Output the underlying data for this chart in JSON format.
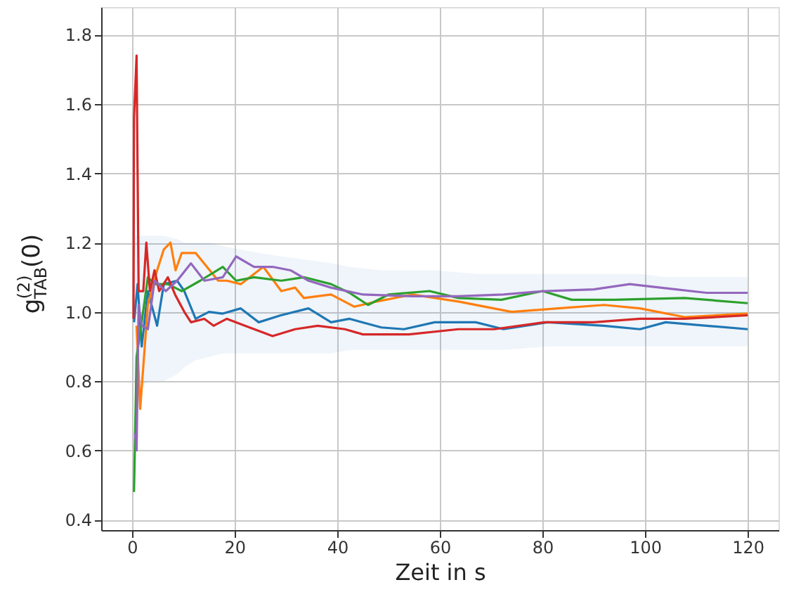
{
  "chart_data": {
    "type": "line",
    "xlabel": "Zeit in s",
    "ylabel": "g$^{(2)}$$_{TAB}$(0)",
    "xlim": [
      -6,
      126
    ],
    "ylim": [
      0.37,
      1.88
    ],
    "xticks": [
      0,
      20,
      40,
      60,
      80,
      100,
      120
    ],
    "yticks": [
      0.4,
      0.6,
      0.8,
      {
        "value": 1.0,
        "label": "1.0"
      },
      1.2,
      1.4,
      1.6,
      1.8
    ],
    "grid": true,
    "line_style": "solid",
    "marker": "none",
    "series": [
      {
        "color": "#1f77b4",
        "x": [
          0.4,
          1.1,
          1.9,
          3.1,
          4.9,
          6.2,
          8.8,
          10.2,
          12.4,
          15,
          17.7,
          21.2,
          24.7,
          29,
          34.4,
          38.8,
          42.4,
          48.6,
          53,
          59,
          67,
          72.4,
          81,
          92,
          99,
          104,
          112,
          120
        ],
        "values": [
          0.97,
          1.08,
          0.9,
          1.06,
          0.96,
          1.08,
          1.09,
          1.06,
          0.98,
          1.0,
          0.995,
          1.01,
          0.97,
          0.99,
          1.01,
          0.97,
          0.98,
          0.955,
          0.95,
          0.97,
          0.97,
          0.95,
          0.97,
          0.96,
          0.95,
          0.97,
          0.96,
          0.95
        ],
        "lower": [
          0.8,
          0.8,
          0.78,
          0.8,
          0.8,
          0.8,
          0.82,
          0.84,
          0.86,
          0.87,
          0.88,
          0.88,
          0.88,
          0.88,
          0.88,
          0.88,
          0.89,
          0.89,
          0.89,
          0.89,
          0.89,
          0.89,
          0.9,
          0.9,
          0.9,
          0.9,
          0.9,
          0.9
        ],
        "upper": [
          1.22,
          1.22,
          1.22,
          1.22,
          1.22,
          1.22,
          1.21,
          1.2,
          1.2,
          1.2,
          1.19,
          1.18,
          1.17,
          1.16,
          1.15,
          1.14,
          1.13,
          1.12,
          1.12,
          1.12,
          1.11,
          1.11,
          1.11,
          1.11,
          1.11,
          1.1,
          1.1,
          1.1
        ]
      },
      {
        "color": "#ff7f0e",
        "x": [
          0.9,
          1.6,
          3.1,
          4.9,
          6.2,
          7.5,
          8.5,
          9.7,
          12.4,
          14.6,
          16.8,
          18.5,
          21.2,
          25.6,
          29.1,
          31.8,
          33.5,
          38.8,
          43.3,
          47.7,
          54.6,
          63.6,
          74,
          83,
          92,
          99,
          107.7,
          120
        ],
        "values": [
          0.96,
          0.72,
          1.02,
          1.12,
          1.18,
          1.2,
          1.12,
          1.17,
          1.17,
          1.13,
          1.09,
          1.09,
          1.08,
          1.13,
          1.06,
          1.07,
          1.04,
          1.05,
          1.015,
          1.03,
          1.05,
          1.03,
          1.0,
          1.01,
          1.02,
          1.01,
          0.985,
          0.995
        ]
      },
      {
        "color": "#2ca02c",
        "x": [
          0.4,
          0.9,
          1.8,
          3.1,
          4.4,
          7,
          9.7,
          13.3,
          17.7,
          20.3,
          23.8,
          29.1,
          33.5,
          38.8,
          42.4,
          46,
          50,
          58,
          63.6,
          72,
          80,
          85.7,
          94,
          107.7,
          120
        ],
        "values": [
          0.48,
          0.87,
          0.96,
          1.1,
          1.08,
          1.08,
          1.06,
          1.09,
          1.13,
          1.09,
          1.1,
          1.09,
          1.1,
          1.08,
          1.055,
          1.02,
          1.05,
          1.06,
          1.04,
          1.035,
          1.06,
          1.035,
          1.035,
          1.04,
          1.025
        ]
      },
      {
        "color": "#d62728",
        "x": [
          0.3,
          0.4,
          0.9,
          1.3,
          2.2,
          2.8,
          3.5,
          4.4,
          5.3,
          7,
          8.4,
          10.2,
          11.5,
          14.1,
          15.9,
          18.5,
          22,
          27.4,
          31.8,
          36.2,
          41.5,
          45,
          54,
          63.6,
          70.6,
          80.4,
          90,
          99,
          107.7,
          120
        ],
        "values": [
          0.98,
          1.56,
          1.74,
          1.06,
          1.06,
          1.2,
          1.06,
          1.12,
          1.06,
          1.1,
          1.05,
          1.0,
          0.97,
          0.98,
          0.96,
          0.98,
          0.96,
          0.93,
          0.95,
          0.96,
          0.95,
          0.935,
          0.935,
          0.95,
          0.95,
          0.97,
          0.97,
          0.98,
          0.98,
          0.99
        ]
      },
      {
        "color": "#9467bd",
        "x": [
          0.6,
          0.9,
          1.3,
          1.9,
          3.1,
          4.4,
          6.6,
          8.8,
          11.5,
          14.1,
          17.7,
          20.3,
          23.8,
          27.4,
          30.9,
          34.4,
          38.8,
          45,
          54.6,
          63.6,
          72.4,
          80.4,
          90,
          97,
          103,
          112,
          120
        ],
        "values": [
          0.65,
          0.6,
          1.02,
          0.96,
          0.95,
          1.09,
          1.06,
          1.09,
          1.14,
          1.09,
          1.1,
          1.16,
          1.13,
          1.13,
          1.12,
          1.09,
          1.07,
          1.05,
          1.045,
          1.045,
          1.05,
          1.06,
          1.065,
          1.08,
          1.07,
          1.055,
          1.055
        ]
      }
    ]
  }
}
